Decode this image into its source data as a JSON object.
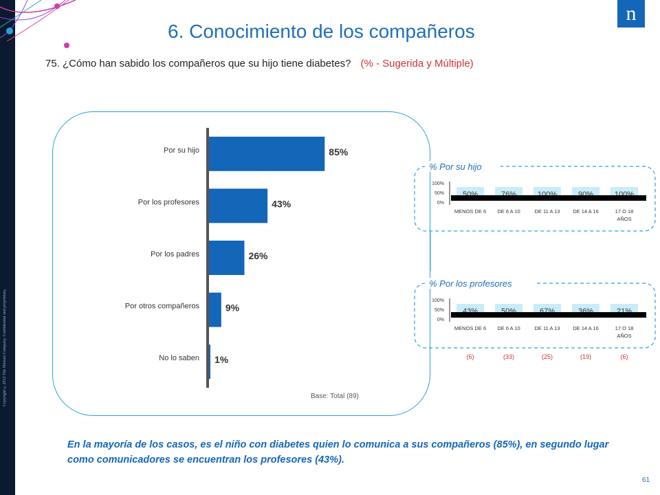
{
  "page": {
    "title": "6. Conocimiento de los compañeros",
    "question": "75. ¿Cómo han sabido los compañeros que su hijo tiene diabetes?",
    "question_note": "(% - Sugerida y Múltiple)",
    "base": "Base: Total   (89)",
    "conclusion": "En la mayoría de los casos, es el niño con diabetes quien lo comunica a sus compañeros (85%), en segundo lugar como comunicadores se encuentran los profesores (43%).",
    "page_number": "61",
    "copyright": "Copyright ©2012 The Nielsen Company. Confidential and proprietary.",
    "logo": "n"
  },
  "colors": {
    "bar": "#1466b8",
    "mini_bar": "#c9ecf9",
    "accent": "#2aa0d6",
    "title": "#1f6fb8",
    "note": "#cc3333"
  },
  "chart_data": [
    {
      "type": "bar",
      "orientation": "horizontal",
      "categories": [
        "Por su hijo",
        "Por los profesores",
        "Por los padres",
        "Por otros compañeros",
        "No lo saben"
      ],
      "values": [
        85,
        43,
        26,
        9,
        1
      ],
      "value_labels": [
        "85%",
        "43%",
        "26%",
        "9%",
        "1%"
      ],
      "xlim": [
        0,
        100
      ]
    },
    {
      "type": "bar",
      "title": "% Por su hijo",
      "categories": [
        "MENOS DE 6",
        "DE 6 A 10",
        "DE 11 A 13",
        "DE 14 A 16",
        "17 O 18 AÑOS"
      ],
      "values": [
        50,
        76,
        100,
        90,
        100
      ],
      "value_labels": [
        "50%",
        "76%",
        "100%",
        "90%",
        "100%"
      ],
      "yticks": [
        "100%",
        "50%",
        "0%"
      ],
      "ylim": [
        0,
        100
      ]
    },
    {
      "type": "bar",
      "title": "% Por los profesores",
      "categories": [
        "MENOS DE 6",
        "DE 6 A 10",
        "DE 11 A 13",
        "DE 14 A 16",
        "17 O 18 AÑOS"
      ],
      "values": [
        43,
        50,
        67,
        36,
        21
      ],
      "value_labels": [
        "43%",
        "50%",
        "67%",
        "36%",
        "21%"
      ],
      "yticks": [
        "100%",
        "50%",
        "0%"
      ],
      "ylim": [
        0,
        100
      ],
      "bases": [
        "(6)",
        "(33)",
        "(25)",
        "(19)",
        "(6)"
      ]
    }
  ]
}
